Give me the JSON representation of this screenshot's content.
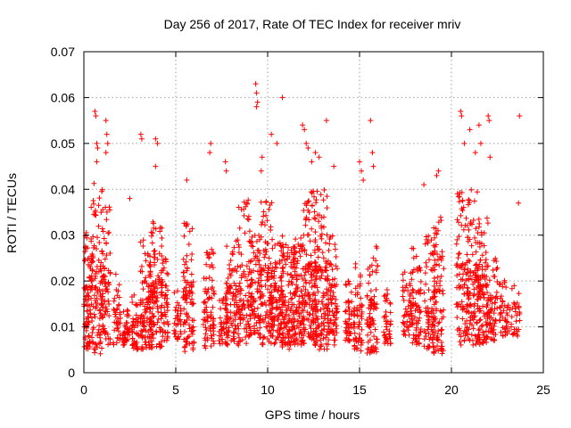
{
  "chart_data": {
    "type": "scatter",
    "title": "Day 256 of 2017, Rate Of TEC Index for receiver mriv",
    "xlabel": "GPS time / hours",
    "ylabel": "ROTI / TECUs",
    "xlim": [
      0,
      25
    ],
    "ylim": [
      0,
      0.07
    ],
    "xticks": [
      "0",
      "5",
      "10",
      "15",
      "20",
      "25"
    ],
    "yticks": [
      "0",
      "0.01",
      "0.02",
      "0.03",
      "0.04",
      "0.05",
      "0.06",
      "0.07"
    ],
    "grid": true,
    "marker": "+",
    "color": "#ff0000",
    "clusters": [
      {
        "t": 0.1,
        "w": 0.25,
        "lo": 0.005,
        "hi": 0.031,
        "n": 90
      },
      {
        "t": 0.7,
        "w": 0.35,
        "lo": 0.004,
        "hi": 0.042,
        "n": 120
      },
      {
        "t": 1.2,
        "w": 0.25,
        "lo": 0.006,
        "hi": 0.037,
        "n": 70
      },
      {
        "t": 1.8,
        "w": 0.2,
        "lo": 0.006,
        "hi": 0.022,
        "n": 40
      },
      {
        "t": 2.3,
        "w": 0.2,
        "lo": 0.006,
        "hi": 0.014,
        "n": 40
      },
      {
        "t": 2.8,
        "w": 0.2,
        "lo": 0.005,
        "hi": 0.018,
        "n": 45
      },
      {
        "t": 3.4,
        "w": 0.35,
        "lo": 0.005,
        "hi": 0.029,
        "n": 100
      },
      {
        "t": 3.9,
        "w": 0.35,
        "lo": 0.005,
        "hi": 0.033,
        "n": 110
      },
      {
        "t": 4.4,
        "w": 0.2,
        "lo": 0.007,
        "hi": 0.025,
        "n": 50
      },
      {
        "t": 5.1,
        "w": 0.2,
        "lo": 0.007,
        "hi": 0.018,
        "n": 35
      },
      {
        "t": 5.7,
        "w": 0.3,
        "lo": 0.004,
        "hi": 0.033,
        "n": 95
      },
      {
        "t": 6.8,
        "w": 0.3,
        "lo": 0.005,
        "hi": 0.027,
        "n": 80
      },
      {
        "t": 7.6,
        "w": 0.25,
        "lo": 0.006,
        "hi": 0.017,
        "n": 40
      },
      {
        "t": 8.1,
        "w": 0.35,
        "lo": 0.006,
        "hi": 0.03,
        "n": 90
      },
      {
        "t": 8.7,
        "w": 0.35,
        "lo": 0.006,
        "hi": 0.038,
        "n": 90
      },
      {
        "t": 9.3,
        "w": 0.3,
        "lo": 0.008,
        "hi": 0.031,
        "n": 80
      },
      {
        "t": 9.9,
        "w": 0.35,
        "lo": 0.006,
        "hi": 0.038,
        "n": 110
      },
      {
        "t": 10.5,
        "w": 0.35,
        "lo": 0.006,
        "hi": 0.03,
        "n": 100
      },
      {
        "t": 11.1,
        "w": 0.4,
        "lo": 0.005,
        "hi": 0.028,
        "n": 120
      },
      {
        "t": 11.7,
        "w": 0.35,
        "lo": 0.006,
        "hi": 0.03,
        "n": 110
      },
      {
        "t": 12.3,
        "w": 0.35,
        "lo": 0.007,
        "hi": 0.04,
        "n": 120
      },
      {
        "t": 12.9,
        "w": 0.35,
        "lo": 0.005,
        "hi": 0.04,
        "n": 130
      },
      {
        "t": 13.5,
        "w": 0.3,
        "lo": 0.006,
        "hi": 0.03,
        "n": 90
      },
      {
        "t": 14.4,
        "w": 0.2,
        "lo": 0.006,
        "hi": 0.02,
        "n": 45
      },
      {
        "t": 14.9,
        "w": 0.25,
        "lo": 0.004,
        "hi": 0.024,
        "n": 60
      },
      {
        "t": 15.7,
        "w": 0.3,
        "lo": 0.004,
        "hi": 0.028,
        "n": 80
      },
      {
        "t": 16.5,
        "w": 0.2,
        "lo": 0.006,
        "hi": 0.019,
        "n": 40
      },
      {
        "t": 17.6,
        "w": 0.25,
        "lo": 0.008,
        "hi": 0.022,
        "n": 50
      },
      {
        "t": 18.1,
        "w": 0.25,
        "lo": 0.006,
        "hi": 0.028,
        "n": 65
      },
      {
        "t": 18.8,
        "w": 0.3,
        "lo": 0.005,
        "hi": 0.03,
        "n": 80
      },
      {
        "t": 19.3,
        "w": 0.3,
        "lo": 0.004,
        "hi": 0.035,
        "n": 80
      },
      {
        "t": 20.6,
        "w": 0.35,
        "lo": 0.006,
        "hi": 0.04,
        "n": 100
      },
      {
        "t": 21.2,
        "w": 0.35,
        "lo": 0.006,
        "hi": 0.04,
        "n": 110
      },
      {
        "t": 21.7,
        "w": 0.3,
        "lo": 0.006,
        "hi": 0.034,
        "n": 90
      },
      {
        "t": 22.2,
        "w": 0.3,
        "lo": 0.007,
        "hi": 0.025,
        "n": 70
      },
      {
        "t": 22.9,
        "w": 0.3,
        "lo": 0.008,
        "hi": 0.021,
        "n": 45
      },
      {
        "t": 23.5,
        "w": 0.25,
        "lo": 0.008,
        "hi": 0.019,
        "n": 30
      }
    ],
    "outliers": [
      [
        0.6,
        0.057
      ],
      [
        0.65,
        0.056
      ],
      [
        0.7,
        0.05
      ],
      [
        0.75,
        0.049
      ],
      [
        0.7,
        0.046
      ],
      [
        1.2,
        0.055
      ],
      [
        1.25,
        0.052
      ],
      [
        1.3,
        0.05
      ],
      [
        1.2,
        0.048
      ],
      [
        3.1,
        0.052
      ],
      [
        3.15,
        0.051
      ],
      [
        3.9,
        0.051
      ],
      [
        4.0,
        0.05
      ],
      [
        3.9,
        0.045
      ],
      [
        5.6,
        0.042
      ],
      [
        6.9,
        0.05
      ],
      [
        6.85,
        0.048
      ],
      [
        7.7,
        0.046
      ],
      [
        7.75,
        0.044
      ],
      [
        9.35,
        0.063
      ],
      [
        9.4,
        0.061
      ],
      [
        9.45,
        0.059
      ],
      [
        9.4,
        0.058
      ],
      [
        10.2,
        0.052
      ],
      [
        10.8,
        0.06
      ],
      [
        10.5,
        0.05
      ],
      [
        9.7,
        0.047
      ],
      [
        9.65,
        0.044
      ],
      [
        11.9,
        0.054
      ],
      [
        12.0,
        0.053
      ],
      [
        12.1,
        0.05
      ],
      [
        12.2,
        0.049
      ],
      [
        12.6,
        0.048
      ],
      [
        13.2,
        0.055
      ],
      [
        12.4,
        0.046
      ],
      [
        12.8,
        0.047
      ],
      [
        13.6,
        0.045
      ],
      [
        15.0,
        0.046
      ],
      [
        15.1,
        0.044
      ],
      [
        15.6,
        0.055
      ],
      [
        15.7,
        0.048
      ],
      [
        15.75,
        0.045
      ],
      [
        15.2,
        0.042
      ],
      [
        18.5,
        0.041
      ],
      [
        19.3,
        0.044
      ],
      [
        19.2,
        0.043
      ],
      [
        20.5,
        0.057
      ],
      [
        20.55,
        0.056
      ],
      [
        20.7,
        0.05
      ],
      [
        21.0,
        0.053
      ],
      [
        21.5,
        0.054
      ],
      [
        21.6,
        0.05
      ],
      [
        21.3,
        0.048
      ],
      [
        22.0,
        0.056
      ],
      [
        22.05,
        0.055
      ],
      [
        22.1,
        0.047
      ],
      [
        23.7,
        0.056
      ],
      [
        23.65,
        0.037
      ],
      [
        2.5,
        0.038
      ]
    ]
  }
}
